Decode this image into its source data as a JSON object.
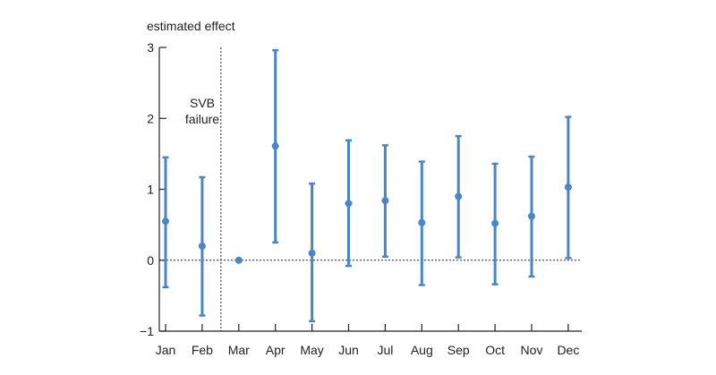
{
  "chart_data": {
    "type": "errorbar",
    "ylabel": "estimated effect",
    "ylim": [
      -1,
      3
    ],
    "yticks": [
      -1,
      0,
      1,
      2,
      3
    ],
    "ytick_labels": [
      "−1",
      "0",
      "1",
      "2",
      "3"
    ],
    "categories": [
      "Jan",
      "Feb",
      "Mar",
      "Apr",
      "May",
      "Jun",
      "Jul",
      "Aug",
      "Sep",
      "Oct",
      "Nov",
      "Dec"
    ],
    "values": [
      0.55,
      0.2,
      0.0,
      1.61,
      0.1,
      0.8,
      0.84,
      0.53,
      0.9,
      0.52,
      0.62,
      1.03
    ],
    "ci_low": [
      -0.38,
      -0.78,
      null,
      0.25,
      -0.86,
      -0.08,
      0.05,
      -0.35,
      0.04,
      -0.34,
      -0.23,
      0.03
    ],
    "ci_high": [
      1.45,
      1.17,
      null,
      2.96,
      1.08,
      1.69,
      1.62,
      1.39,
      1.75,
      1.36,
      1.46,
      2.02
    ],
    "reference_line": {
      "y": 0,
      "style": "dotted"
    },
    "event_line": {
      "between": [
        "Feb",
        "Mar"
      ],
      "style": "dotted",
      "label_lines": [
        "SVB",
        "failure"
      ]
    },
    "color": "#4a86c6",
    "grid": false
  }
}
